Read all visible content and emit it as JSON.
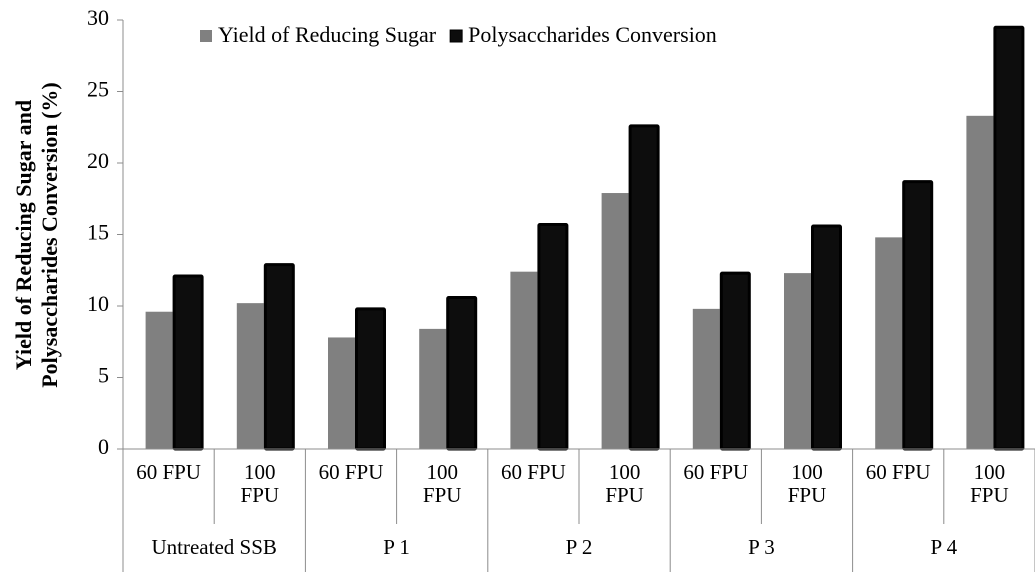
{
  "chart_data": {
    "type": "bar",
    "ylabel": [
      "Yield of Reducing Sugar and",
      "Polysaccharides Conversion (%)"
    ],
    "categories": [
      "60 FPU",
      "100 FPU",
      "60 FPU",
      "100 FPU",
      "60 FPU",
      "100 FPU",
      "60 FPU",
      "100 FPU",
      "60 FPU",
      "100 FPU"
    ],
    "groups": [
      "Untreated SSB",
      "P 1",
      "P 2",
      "P 3",
      "P 4"
    ],
    "series": [
      {
        "name": "Yield of Reducing Sugar",
        "color": "#808080",
        "values": [
          9.6,
          10.2,
          7.8,
          8.4,
          12.4,
          17.9,
          9.8,
          12.3,
          14.8,
          23.3
        ]
      },
      {
        "name": "Polysaccharides Conversion",
        "color": "#0d0d0d",
        "values": [
          12.2,
          13.0,
          9.9,
          10.7,
          15.8,
          22.7,
          12.4,
          15.7,
          18.8,
          29.6
        ]
      }
    ],
    "ylim": [
      0,
      30
    ],
    "yticks": [
      0,
      5,
      10,
      15,
      20,
      25,
      30
    ],
    "legend": "top"
  }
}
